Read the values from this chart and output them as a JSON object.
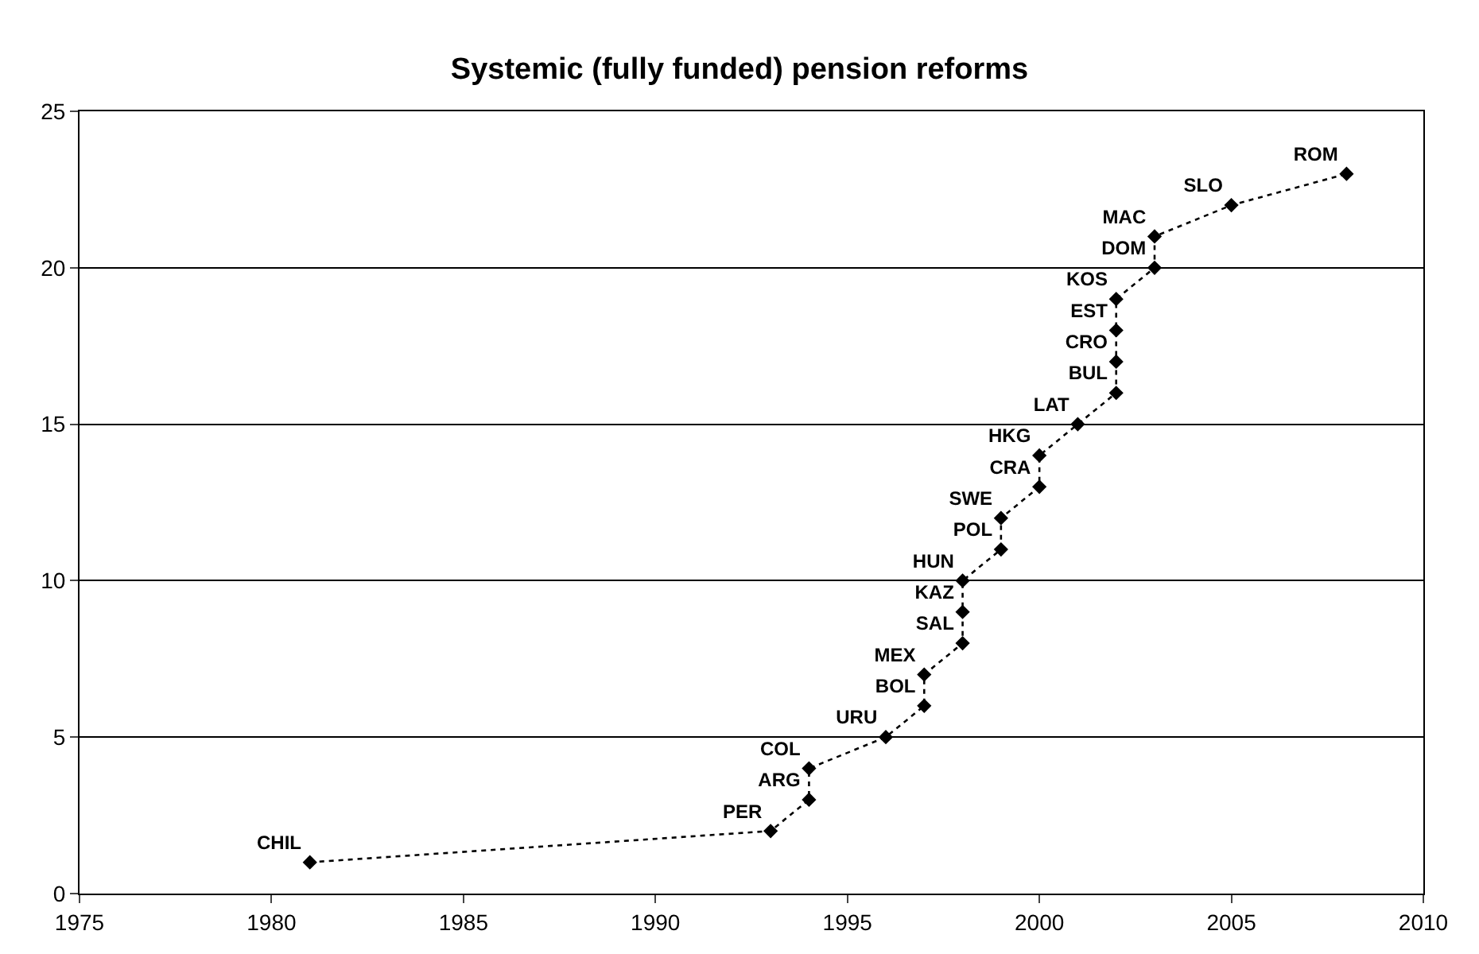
{
  "chart_data": {
    "type": "line",
    "title": "Systemic (fully funded) pension reforms",
    "x": [
      1981,
      1993,
      1994,
      1994,
      1996,
      1997,
      1997,
      1998,
      1998,
      1998,
      1999,
      1999,
      2000,
      2000,
      2001,
      2002,
      2002,
      2002,
      2002,
      2003,
      2003,
      2005,
      2008
    ],
    "values": [
      1,
      2,
      3,
      4,
      5,
      6,
      7,
      8,
      9,
      10,
      11,
      12,
      13,
      14,
      15,
      16,
      17,
      18,
      19,
      20,
      21,
      22,
      23
    ],
    "value_labels": [
      "CHIL",
      "PER",
      "ARG",
      "COL",
      "URU",
      "BOL",
      "MEX",
      "SAL",
      "KAZ",
      "HUN",
      "POL",
      "SWE",
      "CRA",
      "HKG",
      "LAT",
      "BUL",
      "CRO",
      "EST",
      "KOS",
      "DOM",
      "MAC",
      "SLO",
      "ROM"
    ],
    "color": "#000000",
    "marker": "diamond",
    "line_style": "dotted",
    "grid": "y",
    "xlim": [
      1975,
      2010
    ],
    "xticks": [
      1975,
      1980,
      1985,
      1990,
      1995,
      2000,
      2005,
      2010
    ],
    "ylim": [
      0,
      25
    ],
    "yticks": [
      0,
      5,
      10,
      15,
      20,
      25
    ]
  }
}
